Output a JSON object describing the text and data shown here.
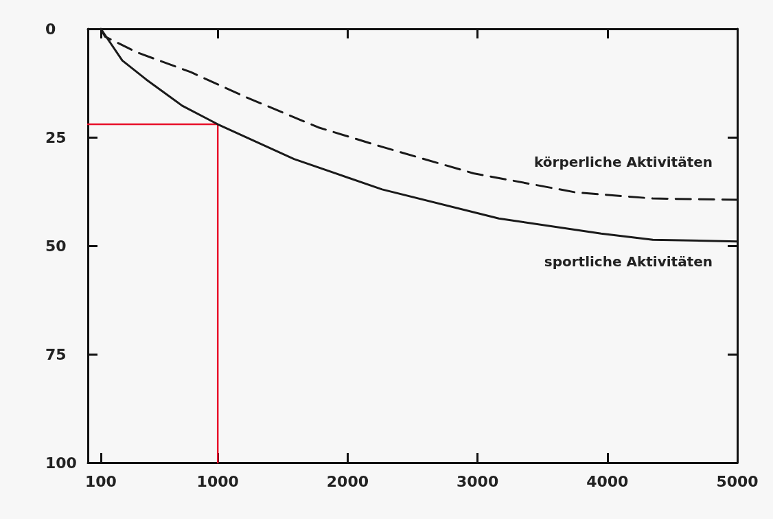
{
  "chart_data": {
    "type": "line",
    "xlim": [
      0,
      5000
    ],
    "xticks": [
      100,
      1000,
      2000,
      3000,
      4000,
      5000
    ],
    "ylim": [
      100,
      0
    ],
    "yticks": [
      0,
      25,
      50,
      75,
      100
    ],
    "series": [
      {
        "name": "körperliche Aktivitäten",
        "color": "#1a1a1a",
        "line_style": "dashed",
        "x": [
          100,
          132,
          376,
          794,
          1206,
          1773,
          2265,
          2968,
          3757,
          4349,
          5000
        ],
        "values": [
          0,
          1.8,
          5.4,
          10,
          15.6,
          22.7,
          27.2,
          33.3,
          37.7,
          39.1,
          39.4
        ]
      },
      {
        "name": "sportliche Aktivitäten",
        "color": "#1a1a1a",
        "line_style": "solid",
        "x": [
          100,
          265,
          450,
          725,
          1000,
          1587,
          2265,
          3164,
          3952,
          4349,
          5000
        ],
        "values": [
          0,
          7.3,
          11.7,
          17.7,
          22,
          30,
          37,
          43.7,
          47.2,
          48.6,
          49
        ]
      },
      {
        "color": "#e8102a",
        "line_style": "solid",
        "x": [
          0,
          1000,
          1000
        ],
        "values": [
          22,
          22,
          100
        ]
      }
    ]
  }
}
